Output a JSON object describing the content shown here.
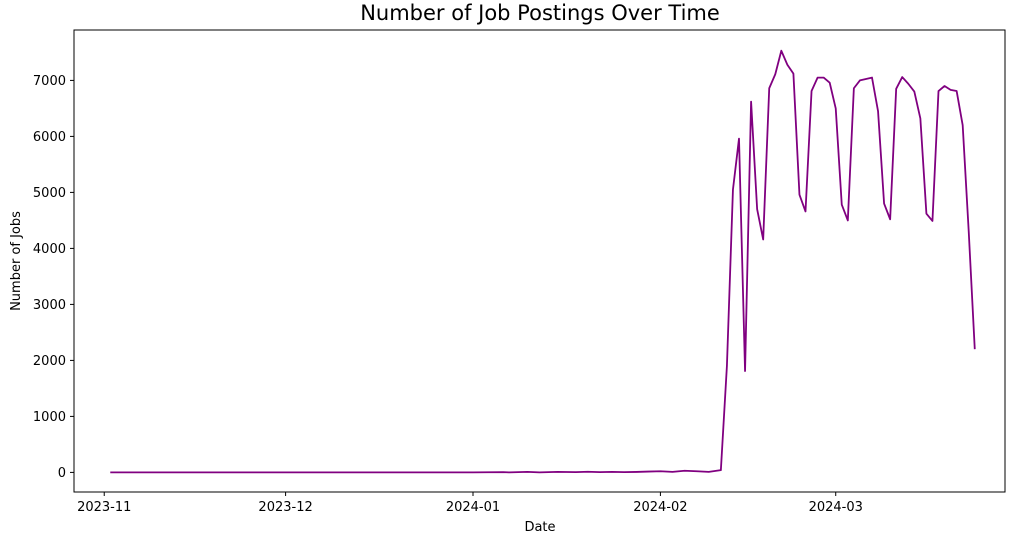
{
  "chart_data": {
    "type": "line",
    "title": "Number of Job Postings Over Time",
    "xlabel": "Date",
    "ylabel": "Number of Jobs",
    "xlim": [
      "2023-10-27",
      "2024-03-29"
    ],
    "ylim": [
      -350,
      7900
    ],
    "grid": false,
    "x_ticks": [
      {
        "date": "2023-11-01",
        "label": "2023-11"
      },
      {
        "date": "2023-12-01",
        "label": "2023-12"
      },
      {
        "date": "2024-01-01",
        "label": "2024-01"
      },
      {
        "date": "2024-02-01",
        "label": "2024-02"
      },
      {
        "date": "2024-03-01",
        "label": "2024-03"
      }
    ],
    "y_ticks": [
      {
        "value": 0,
        "label": "0"
      },
      {
        "value": 1000,
        "label": "1000"
      },
      {
        "value": 2000,
        "label": "2000"
      },
      {
        "value": 3000,
        "label": "3000"
      },
      {
        "value": 4000,
        "label": "4000"
      },
      {
        "value": 5000,
        "label": "5000"
      },
      {
        "value": 6000,
        "label": "6000"
      },
      {
        "value": 7000,
        "label": "7000"
      }
    ],
    "series": [
      {
        "color": "#800080",
        "points": [
          [
            "2023-11-02",
            0
          ],
          [
            "2023-11-15",
            0
          ],
          [
            "2023-12-01",
            0
          ],
          [
            "2023-12-15",
            0
          ],
          [
            "2024-01-01",
            0
          ],
          [
            "2024-01-06",
            5
          ],
          [
            "2024-01-07",
            0
          ],
          [
            "2024-01-10",
            10
          ],
          [
            "2024-01-12",
            0
          ],
          [
            "2024-01-15",
            10
          ],
          [
            "2024-01-18",
            5
          ],
          [
            "2024-01-20",
            12
          ],
          [
            "2024-01-22",
            5
          ],
          [
            "2024-01-24",
            10
          ],
          [
            "2024-01-26",
            5
          ],
          [
            "2024-01-28",
            8
          ],
          [
            "2024-01-30",
            15
          ],
          [
            "2024-02-01",
            20
          ],
          [
            "2024-02-03",
            10
          ],
          [
            "2024-02-05",
            30
          ],
          [
            "2024-02-07",
            20
          ],
          [
            "2024-02-09",
            10
          ],
          [
            "2024-02-11",
            40
          ],
          [
            "2024-02-12",
            1900
          ],
          [
            "2024-02-13",
            5050
          ],
          [
            "2024-02-14",
            5960
          ],
          [
            "2024-02-15",
            1810
          ],
          [
            "2024-02-16",
            6620
          ],
          [
            "2024-02-17",
            4700
          ],
          [
            "2024-02-18",
            4160
          ],
          [
            "2024-02-19",
            6860
          ],
          [
            "2024-02-20",
            7110
          ],
          [
            "2024-02-21",
            7530
          ],
          [
            "2024-02-22",
            7280
          ],
          [
            "2024-02-23",
            7120
          ],
          [
            "2024-02-24",
            4960
          ],
          [
            "2024-02-25",
            4660
          ],
          [
            "2024-02-26",
            6810
          ],
          [
            "2024-02-27",
            7050
          ],
          [
            "2024-02-28",
            7050
          ],
          [
            "2024-02-29",
            6960
          ],
          [
            "2024-03-01",
            6500
          ],
          [
            "2024-03-02",
            4780
          ],
          [
            "2024-03-03",
            4500
          ],
          [
            "2024-03-04",
            6860
          ],
          [
            "2024-03-05",
            7000
          ],
          [
            "2024-03-07",
            7050
          ],
          [
            "2024-03-08",
            6450
          ],
          [
            "2024-03-09",
            4800
          ],
          [
            "2024-03-10",
            4520
          ],
          [
            "2024-03-11",
            6850
          ],
          [
            "2024-03-12",
            7060
          ],
          [
            "2024-03-13",
            6940
          ],
          [
            "2024-03-14",
            6800
          ],
          [
            "2024-03-15",
            6320
          ],
          [
            "2024-03-16",
            4620
          ],
          [
            "2024-03-17",
            4490
          ],
          [
            "2024-03-18",
            6810
          ],
          [
            "2024-03-19",
            6900
          ],
          [
            "2024-03-20",
            6830
          ],
          [
            "2024-03-21",
            6810
          ],
          [
            "2024-03-22",
            6200
          ],
          [
            "2024-03-23",
            4300
          ],
          [
            "2024-03-24",
            2200
          ]
        ]
      }
    ]
  }
}
